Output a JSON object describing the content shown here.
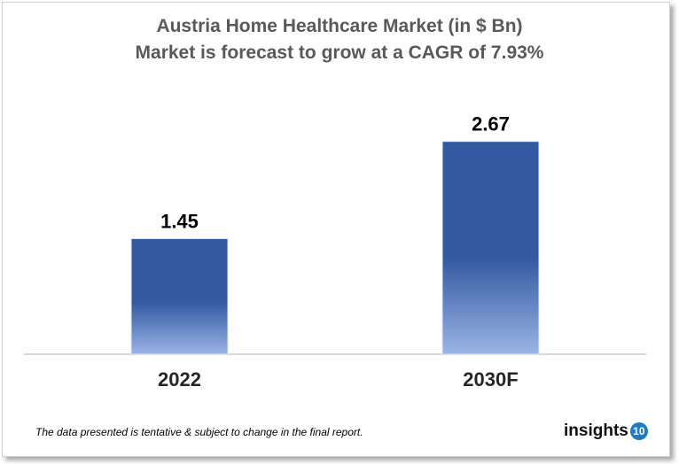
{
  "chart_data": {
    "type": "bar",
    "title": "Austria Home Healthcare Market (in $ Bn)",
    "subtitle": "Market is forecast to grow at a CAGR of 7.93%",
    "categories": [
      "2022",
      "2030F"
    ],
    "values": [
      1.45,
      2.67
    ],
    "data_labels": [
      "1.45",
      "2.67"
    ],
    "ylim": [
      0,
      3
    ],
    "grid": false,
    "colors": {
      "bar_top": "#335aa0",
      "bar_bottom": "#9ab4e6",
      "title": "#595959"
    }
  },
  "footnote": "The data presented is tentative & subject to change in the final report.",
  "logo": {
    "text": "insights",
    "badge": "10"
  }
}
